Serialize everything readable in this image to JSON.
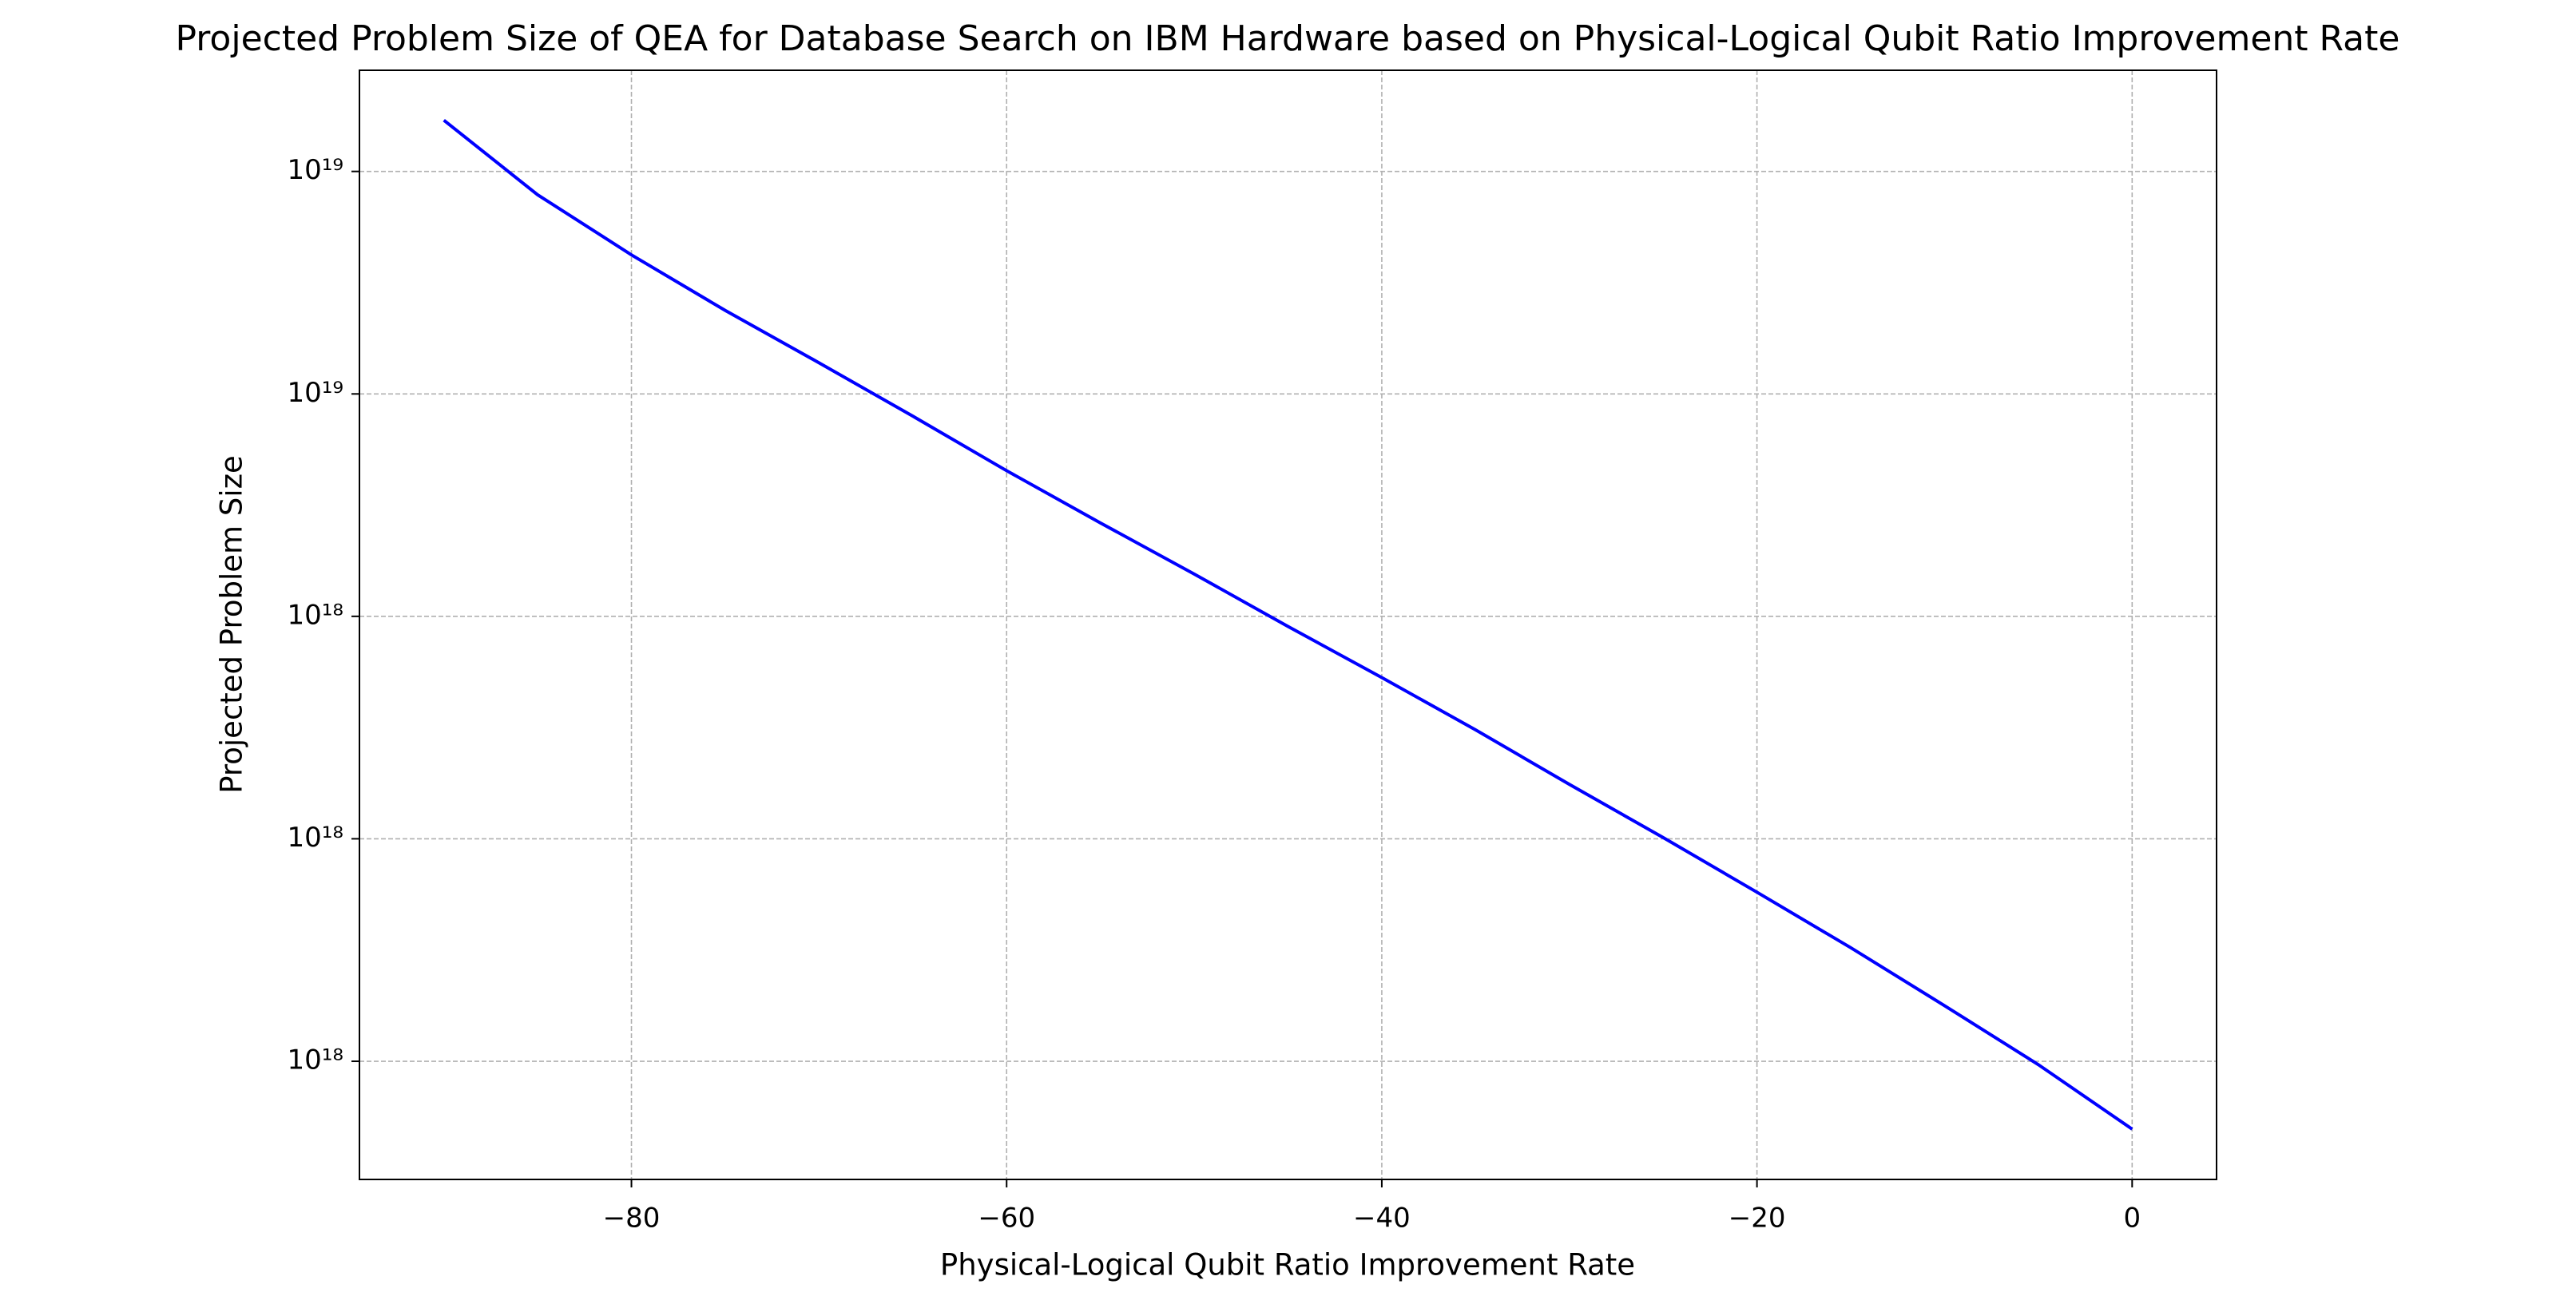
{
  "chart_data": {
    "type": "line",
    "title": "Projected Problem Size of QEA for Database Search on IBM Hardware based on Physical-Logical Qubit Ratio Improvement Rate",
    "x_label": "Physical-Logical Qubit Ratio Improvement Rate",
    "y_label": "Projected Problem Size",
    "x": [
      -90,
      -85,
      -80,
      -75,
      -70,
      -65,
      -60,
      -55,
      -50,
      -45,
      -40,
      -35,
      -30,
      -25,
      -20,
      -15,
      -10,
      -5,
      0
    ],
    "series": [
      {
        "name": "Projected Problem Size",
        "color": "#0000ff",
        "values": [
          7.015e+18,
          6.012e+18,
          5.309e+18,
          4.732e+18,
          4.246e+18,
          3.802e+18,
          3.396e+18,
          3.048e+18,
          2.742e+18,
          2.46e+18,
          2.213e+18,
          1.986e+18,
          1.774e+18,
          1.589e+18,
          1.419e+18,
          1.265e+18,
          1.122e+18,
          9.93e+17,
          8.69e+17
        ]
      }
    ],
    "xlim": [
      -94.5,
      4.5
    ],
    "xticks": [
      {
        "value": -80,
        "label": "−80"
      },
      {
        "value": -60,
        "label": "−60"
      },
      {
        "value": -40,
        "label": "−40"
      },
      {
        "value": -20,
        "label": "−20"
      },
      0
    ],
    "ylim": [
      7.83e+17,
      7.78e+18
    ],
    "yscale": "log",
    "yticks": [
      {
        "value": 1e+18,
        "label": "10¹⁸"
      },
      {
        "value": 1.585e+18,
        "label": "10¹⁸"
      },
      {
        "value": 2.512e+18,
        "label": "10¹⁸"
      },
      {
        "value": 3.981e+18,
        "label": "10¹⁹"
      },
      {
        "value": 6.31e+18,
        "label": "10¹⁹"
      }
    ],
    "grid": true
  }
}
